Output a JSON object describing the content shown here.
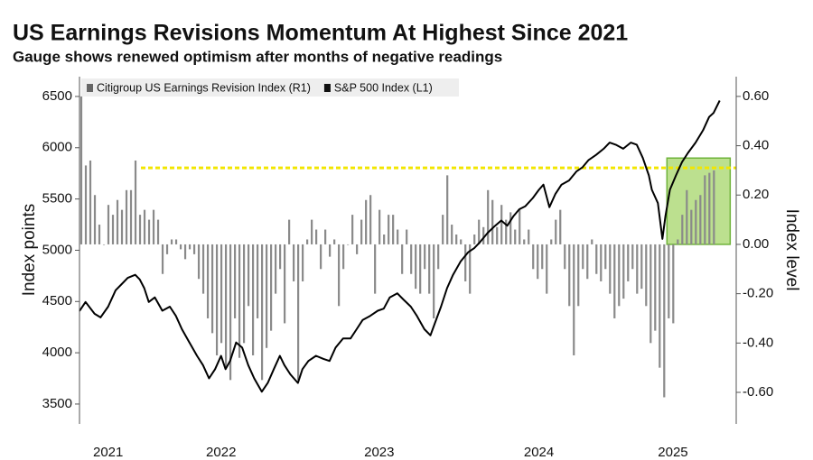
{
  "chart_data": {
    "type": "bar-line",
    "title": "US Earnings Revisions Momentum At Highest Since 2021",
    "subtitle": "Gauge shows renewed optimism after months of negative readings",
    "ylabel": "Index points",
    "y2label": "Index level",
    "xlim": [
      2021.6,
      2025.96
    ],
    "xticks": [
      {
        "value": 2021.79,
        "label": "2021"
      },
      {
        "value": 2022.54,
        "label": "2022"
      },
      {
        "value": 2023.59,
        "label": "2023"
      },
      {
        "value": 2024.65,
        "label": "2024"
      },
      {
        "value": 2025.54,
        "label": "2025"
      }
    ],
    "ylim": [
      3306,
      6693
    ],
    "yticks": [
      3500,
      4000,
      4500,
      5000,
      5500,
      6000,
      6500
    ],
    "y2lim": [
      -0.728,
      0.68
    ],
    "y2ticks": [
      {
        "value": -0.6,
        "label": "-0.60"
      },
      {
        "value": -0.4,
        "label": "-0.40"
      },
      {
        "value": -0.2,
        "label": "-0.20"
      },
      {
        "value": 0,
        "label": "0.00"
      },
      {
        "value": 0.2,
        "label": "0.20"
      },
      {
        "value": 0.4,
        "label": "0.40"
      },
      {
        "value": 0.6,
        "label": "0.60"
      }
    ],
    "legend": "top-left",
    "reference_line": {
      "value": 0.31,
      "axis": "y2",
      "color": "#f2e600"
    },
    "highlight": {
      "x": [
        2025.5,
        2025.92
      ],
      "y2": [
        0,
        0.35
      ],
      "color": "#a6d66a"
    },
    "series": [
      {
        "name": "Citigroup US Earnings Revision Index (R1)",
        "type": "bar",
        "axis": "y2",
        "color": "#8a8a8a",
        "x": [
          2021.612,
          2021.642,
          2021.672,
          2021.702,
          2021.732,
          2021.762,
          2021.792,
          2021.822,
          2021.852,
          2021.882,
          2021.912,
          2021.942,
          2021.972,
          2022.002,
          2022.032,
          2022.062,
          2022.092,
          2022.122,
          2022.152,
          2022.182,
          2022.212,
          2022.242,
          2022.272,
          2022.302,
          2022.332,
          2022.362,
          2022.392,
          2022.422,
          2022.452,
          2022.482,
          2022.512,
          2022.542,
          2022.572,
          2022.602,
          2022.632,
          2022.662,
          2022.692,
          2022.722,
          2022.752,
          2022.782,
          2022.812,
          2022.842,
          2022.872,
          2022.902,
          2022.932,
          2022.962,
          2022.992,
          2023.022,
          2023.052,
          2023.082,
          2023.112,
          2023.142,
          2023.172,
          2023.202,
          2023.232,
          2023.262,
          2023.292,
          2023.322,
          2023.352,
          2023.382,
          2023.412,
          2023.442,
          2023.472,
          2023.502,
          2023.532,
          2023.562,
          2023.592,
          2023.622,
          2023.652,
          2023.682,
          2023.712,
          2023.742,
          2023.772,
          2023.802,
          2023.832,
          2023.862,
          2023.892,
          2023.922,
          2023.952,
          2023.982,
          2024.012,
          2024.042,
          2024.072,
          2024.102,
          2024.132,
          2024.162,
          2024.192,
          2024.222,
          2024.252,
          2024.282,
          2024.312,
          2024.342,
          2024.372,
          2024.402,
          2024.432,
          2024.462,
          2024.492,
          2024.522,
          2024.552,
          2024.582,
          2024.612,
          2024.642,
          2024.672,
          2024.702,
          2024.732,
          2024.762,
          2024.792,
          2024.822,
          2024.852,
          2024.882,
          2024.912,
          2024.942,
          2024.972,
          2025.002,
          2025.032,
          2025.062,
          2025.092,
          2025.122,
          2025.152,
          2025.182,
          2025.212,
          2025.242,
          2025.272,
          2025.302,
          2025.332,
          2025.362,
          2025.392,
          2025.422,
          2025.452,
          2025.482,
          2025.512,
          2025.542,
          2025.572,
          2025.602,
          2025.632,
          2025.662,
          2025.692,
          2025.722,
          2025.752,
          2025.782,
          2025.812
        ],
        "values": [
          0.6,
          0.32,
          0.34,
          0.2,
          0.08,
          0.0,
          0.16,
          0.12,
          0.18,
          0.14,
          0.22,
          0.22,
          0.34,
          0.12,
          0.14,
          0.1,
          0.14,
          0.1,
          -0.12,
          -0.04,
          0.02,
          0.02,
          -0.02,
          -0.06,
          -0.02,
          -0.04,
          -0.14,
          -0.2,
          -0.3,
          -0.36,
          -0.45,
          -0.4,
          -0.5,
          -0.55,
          -0.3,
          -0.46,
          -0.4,
          -0.25,
          -0.45,
          -0.3,
          -0.55,
          -0.42,
          -0.35,
          -0.2,
          -0.1,
          -0.32,
          0.1,
          -0.15,
          -0.55,
          -0.15,
          0.02,
          0.1,
          0.06,
          -0.1,
          0.06,
          -0.05,
          0.02,
          -0.25,
          -0.1,
          0.0,
          0.12,
          -0.04,
          0.1,
          0.18,
          0.2,
          -0.2,
          0.14,
          0.04,
          0.12,
          0.12,
          0.06,
          -0.12,
          0.06,
          -0.12,
          -0.18,
          -0.2,
          -0.1,
          -0.2,
          -0.3,
          -0.1,
          0.12,
          0.28,
          0.08,
          0.04,
          0.02,
          -0.15,
          -0.2,
          0.04,
          0.1,
          0.07,
          0.22,
          0.18,
          0.07,
          0.16,
          0.1,
          0.13,
          0.06,
          0.14,
          0.02,
          0.06,
          -0.1,
          -0.14,
          -0.1,
          -0.2,
          0.02,
          0.1,
          0.14,
          -0.1,
          -0.25,
          -0.45,
          -0.25,
          -0.1,
          -0.14,
          0.02,
          -0.12,
          -0.15,
          -0.1,
          -0.2,
          -0.3,
          -0.25,
          -0.22,
          -0.15,
          -0.1,
          -0.2,
          -0.18,
          -0.25,
          -0.4,
          -0.35,
          -0.5,
          -0.62,
          -0.3,
          -0.32,
          0.02,
          0.12,
          0.22,
          0.14,
          0.18,
          0.2,
          0.28,
          0.29,
          0.3
        ]
      },
      {
        "name": "S&P 500 Index (L1)",
        "type": "line",
        "axis": "y",
        "color": "#000000",
        "x": [
          2021.6,
          2021.64,
          2021.7,
          2021.74,
          2021.79,
          2021.84,
          2021.88,
          2021.92,
          2021.97,
          2022.0,
          2022.03,
          2022.06,
          2022.1,
          2022.15,
          2022.2,
          2022.24,
          2022.28,
          2022.33,
          2022.38,
          2022.42,
          2022.46,
          2022.5,
          2022.54,
          2022.57,
          2022.6,
          2022.64,
          2022.68,
          2022.72,
          2022.76,
          2022.81,
          2022.85,
          2022.89,
          2022.93,
          2022.96,
          2023.0,
          2023.05,
          2023.08,
          2023.12,
          2023.17,
          2023.22,
          2023.26,
          2023.3,
          2023.35,
          2023.4,
          2023.44,
          2023.48,
          2023.53,
          2023.58,
          2023.62,
          2023.66,
          2023.71,
          2023.75,
          2023.8,
          2023.84,
          2023.89,
          2023.93,
          2023.96,
          2024.0,
          2024.04,
          2024.08,
          2024.13,
          2024.18,
          2024.22,
          2024.26,
          2024.31,
          2024.36,
          2024.4,
          2024.44,
          2024.48,
          2024.52,
          2024.56,
          2024.61,
          2024.65,
          2024.68,
          2024.72,
          2024.76,
          2024.8,
          2024.85,
          2024.9,
          2024.94,
          2024.98,
          2025.03,
          2025.08,
          2025.12,
          2025.16,
          2025.21,
          2025.26,
          2025.3,
          2025.34,
          2025.38,
          2025.4,
          2025.44,
          2025.47,
          2025.49,
          2025.52,
          2025.56,
          2025.6,
          2025.64,
          2025.69,
          2025.74,
          2025.78,
          2025.81,
          2025.85
        ],
        "values": [
          4407,
          4495,
          4380,
          4345,
          4450,
          4610,
          4670,
          4730,
          4760,
          4715,
          4630,
          4495,
          4540,
          4410,
          4450,
          4360,
          4230,
          4100,
          3970,
          3880,
          3750,
          3840,
          3970,
          3840,
          3920,
          4100,
          4050,
          3880,
          3750,
          3620,
          3705,
          3840,
          3970,
          3880,
          3790,
          3705,
          3840,
          3920,
          3970,
          3940,
          3920,
          4050,
          4140,
          4140,
          4230,
          4320,
          4360,
          4410,
          4430,
          4540,
          4580,
          4520,
          4450,
          4360,
          4230,
          4170,
          4290,
          4450,
          4630,
          4760,
          4890,
          4980,
          5020,
          5080,
          5170,
          5240,
          5290,
          5240,
          5330,
          5400,
          5430,
          5510,
          5590,
          5640,
          5420,
          5550,
          5640,
          5680,
          5770,
          5810,
          5880,
          5930,
          5990,
          6050,
          6030,
          5990,
          6050,
          6030,
          5900,
          5730,
          5590,
          5460,
          5110,
          5330,
          5590,
          5730,
          5860,
          5950,
          6050,
          6170,
          6300,
          6340,
          6460
        ]
      }
    ]
  }
}
